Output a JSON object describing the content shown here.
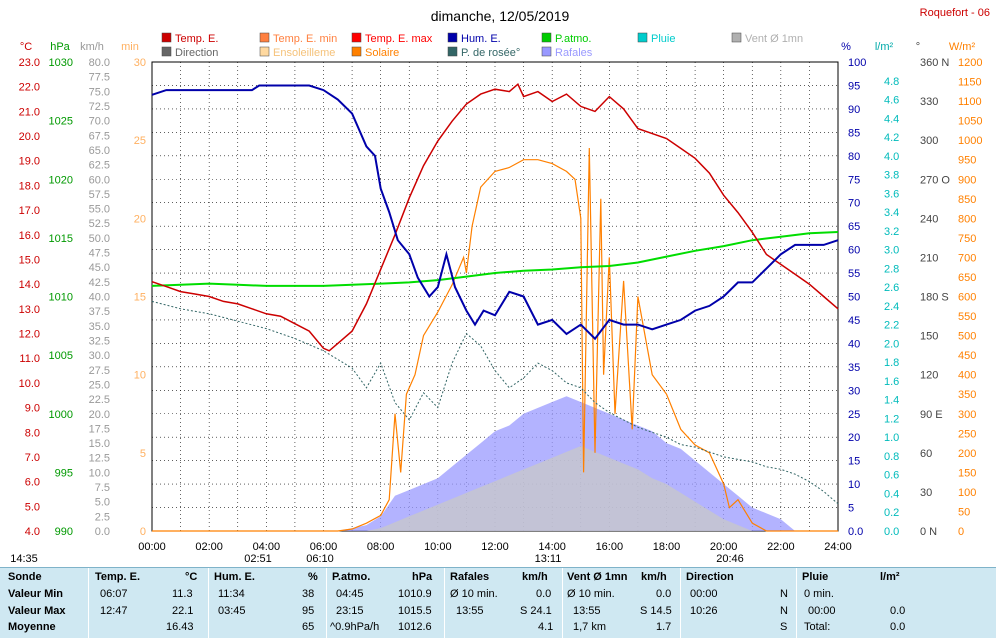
{
  "chart_data": {
    "type": "line",
    "title": "dimanche, 12/05/2019",
    "station": "Roquefort - 06",
    "x_ticks": [
      "00:00",
      "02:00",
      "04:00",
      "06:00",
      "08:00",
      "10:00",
      "12:00",
      "14:00",
      "16:00",
      "18:00",
      "20:00",
      "22:00",
      "24:00"
    ],
    "xlim": [
      0,
      24
    ],
    "legend": [
      {
        "label": "Temp. E.",
        "color": "#cc0000"
      },
      {
        "label": "Temp. E. min",
        "color": "#ff8040"
      },
      {
        "label": "Temp. E. max",
        "color": "#ff0000"
      },
      {
        "label": "Hum. E.",
        "color": "#0000aa"
      },
      {
        "label": "P.atmo.",
        "color": "#00cc00"
      },
      {
        "label": "Pluie",
        "color": "#00cccc"
      },
      {
        "label": "Vent Ø 1mn",
        "color": "#b0b0b0"
      },
      {
        "label": "Direction",
        "color": "#666666"
      },
      {
        "label": "Ensoleilleme",
        "color": "#ffd9a0"
      },
      {
        "label": "Solaire",
        "color": "#ff8000"
      },
      {
        "label": "P. de rosée°",
        "color": "#336666"
      },
      {
        "label": "Rafales",
        "color": "#9999ff"
      }
    ],
    "axes": {
      "temp": {
        "unit": "°C",
        "min": 4.0,
        "max": 23.0,
        "ticks": [
          "23.0",
          "22.0",
          "21.0",
          "20.0",
          "19.0",
          "18.0",
          "17.0",
          "16.0",
          "15.0",
          "14.0",
          "13.0",
          "12.0",
          "11.0",
          "10.0",
          "9.0",
          "8.0",
          "7.0",
          "6.0",
          "5.0",
          "4.0"
        ],
        "color": "#cc0000"
      },
      "pressure": {
        "unit": "hPa",
        "min": 990,
        "max": 1030,
        "ticks": [
          "1030",
          "1025",
          "1020",
          "1015",
          "1010",
          "1005",
          "1000",
          "995",
          "990"
        ],
        "color": "#009900"
      },
      "wind": {
        "unit": "km/h",
        "min": 0,
        "max": 80,
        "ticks": [
          "80.0",
          "77.5",
          "75.0",
          "72.5",
          "70.0",
          "67.5",
          "65.0",
          "62.5",
          "60.0",
          "57.5",
          "55.0",
          "52.5",
          "50.0",
          "47.5",
          "45.0",
          "42.5",
          "40.0",
          "37.5",
          "35.0",
          "32.5",
          "30.0",
          "27.5",
          "25.0",
          "22.5",
          "20.0",
          "17.5",
          "15.0",
          "12.5",
          "10.0",
          "7.5",
          "5.0",
          "2.5",
          "0.0"
        ],
        "color": "#999999"
      },
      "sun": {
        "unit": "min",
        "min": 0,
        "max": 30,
        "ticks": [
          "30",
          "25",
          "20",
          "15",
          "10",
          "5",
          "0"
        ],
        "color": "#ffb060"
      },
      "hum": {
        "unit": "%",
        "min": 0,
        "max": 100,
        "ticks": [
          "100",
          "95",
          "90",
          "85",
          "80",
          "75",
          "70",
          "65",
          "60",
          "55",
          "50",
          "45",
          "40",
          "35",
          "30",
          "25",
          "20",
          "15",
          "10",
          "5",
          "0.0"
        ],
        "color": "#0000aa"
      },
      "rain": {
        "unit": "l/m²",
        "min": 0,
        "max": 5.0,
        "ticks": [
          "4.8",
          "4.6",
          "4.4",
          "4.2",
          "4.0",
          "3.8",
          "3.6",
          "3.4",
          "3.2",
          "3.0",
          "2.8",
          "2.6",
          "2.4",
          "2.2",
          "2.0",
          "1.8",
          "1.6",
          "1.4",
          "1.2",
          "1.0",
          "0.8",
          "0.6",
          "0.4",
          "0.2",
          "0.0"
        ],
        "color": "#00cccc"
      },
      "dir": {
        "unit": "°",
        "ticks": [
          "360 N",
          "330",
          "300",
          "270 O",
          "240",
          "210",
          "180 S",
          "150",
          "120",
          "90 E",
          "60",
          "30",
          "0 N"
        ],
        "color": "#444444"
      },
      "solar": {
        "unit": "W/m²",
        "min": 0,
        "max": 1200,
        "ticks": [
          "1200",
          "1150",
          "1100",
          "1050",
          "1000",
          "950",
          "900",
          "850",
          "800",
          "750",
          "700",
          "650",
          "600",
          "550",
          "500",
          "450",
          "400",
          "350",
          "300",
          "250",
          "200",
          "150",
          "100",
          "50",
          "0"
        ],
        "color": "#ff8000"
      }
    },
    "series": [
      {
        "name": "Temp. E.",
        "axis": "temp",
        "x": [
          0,
          0.5,
          1,
          1.5,
          2,
          2.5,
          3,
          3.5,
          4,
          4.5,
          5,
          5.5,
          6,
          6.2,
          6.5,
          7,
          7.5,
          8,
          8.5,
          9,
          9.5,
          10,
          10.5,
          11,
          11.5,
          12,
          12.5,
          12.8,
          13,
          13.5,
          14,
          14.5,
          15,
          15.5,
          16,
          16.5,
          17,
          17.5,
          18,
          18.5,
          19,
          19.5,
          20,
          20.5,
          21,
          21.5,
          22,
          22.5,
          23,
          23.5,
          24
        ],
        "y": [
          14.1,
          13.9,
          13.7,
          13.6,
          13.5,
          13.3,
          13.2,
          13.0,
          12.8,
          12.7,
          12.4,
          12.1,
          11.4,
          11.3,
          11.6,
          12.1,
          13.2,
          14.6,
          16.0,
          17.5,
          18.8,
          19.8,
          20.6,
          21.3,
          21.7,
          21.9,
          21.8,
          22.1,
          21.6,
          21.8,
          21.4,
          21.7,
          21.2,
          21.0,
          21.6,
          21.1,
          20.3,
          20.1,
          19.9,
          19.5,
          19.1,
          18.5,
          17.6,
          16.9,
          16.1,
          15.2,
          14.8,
          14.4,
          14.0,
          13.5,
          13.0
        ]
      },
      {
        "name": "Hum. E.",
        "axis": "hum",
        "x": [
          0,
          0.5,
          1,
          1.5,
          2,
          2.5,
          3,
          3.5,
          3.75,
          4,
          4.5,
          5,
          5.5,
          6,
          6.5,
          7,
          7.5,
          7.8,
          8,
          8.3,
          8.6,
          9,
          9.3,
          9.7,
          10,
          10.3,
          10.6,
          11,
          11.3,
          11.6,
          12,
          12.5,
          13,
          13.5,
          14,
          14.5,
          15,
          15.5,
          16,
          16.5,
          17,
          17.5,
          18,
          18.5,
          19,
          19.5,
          20,
          20.5,
          21,
          21.5,
          22,
          22.5,
          23,
          23.5,
          24
        ],
        "y": [
          93,
          94,
          94,
          94,
          94,
          94,
          94,
          94,
          95,
          95,
          95,
          95,
          95,
          94,
          92,
          89,
          82,
          80,
          73,
          68,
          62,
          59,
          54,
          50,
          52,
          59,
          52,
          47,
          44,
          47,
          46,
          51,
          50,
          44,
          45,
          42,
          44,
          41,
          45,
          44,
          44,
          43,
          44,
          45,
          47,
          48,
          50,
          53,
          53,
          56,
          59,
          61,
          61,
          61,
          62
        ]
      },
      {
        "name": "P.atmo.",
        "axis": "pressure",
        "x": [
          0,
          1,
          2,
          3,
          4,
          5,
          6,
          7,
          8,
          9,
          10,
          11,
          12,
          13,
          14,
          15,
          16,
          17,
          18,
          19,
          20,
          21,
          22,
          23,
          24
        ],
        "y": [
          1010.9,
          1011.0,
          1011.1,
          1011.0,
          1010.9,
          1010.9,
          1010.9,
          1011.0,
          1011.1,
          1011.2,
          1011.4,
          1011.7,
          1012.0,
          1012.2,
          1012.3,
          1012.5,
          1012.6,
          1012.9,
          1013.4,
          1013.9,
          1014.3,
          1014.8,
          1015.1,
          1015.4,
          1015.5
        ]
      },
      {
        "name": "P. de rosée°",
        "axis": "temp",
        "x": [
          0,
          1,
          2,
          3,
          4,
          5,
          6,
          7,
          7.5,
          8,
          8.5,
          9,
          9.5,
          10,
          10.5,
          11,
          11.5,
          12,
          12.5,
          13,
          13.5,
          14,
          14.5,
          15,
          15.5,
          16,
          16.5,
          17,
          17.5,
          18,
          18.5,
          19,
          19.5,
          20,
          20.5,
          21,
          21.5,
          22,
          22.5,
          23,
          23.5,
          24
        ],
        "y": [
          13.3,
          13.0,
          12.8,
          12.5,
          12.2,
          11.8,
          11.3,
          10.6,
          9.8,
          10.8,
          9.2,
          8.5,
          9.6,
          9.0,
          10.8,
          12.0,
          11.5,
          10.5,
          9.8,
          10.2,
          10.8,
          10.5,
          10.0,
          9.8,
          9.2,
          8.8,
          8.5,
          8.2,
          8.0,
          7.8,
          7.5,
          7.4,
          7.2,
          7.0,
          6.9,
          6.8,
          6.6,
          6.5,
          6.3,
          6.0,
          5.6,
          5.1
        ]
      },
      {
        "name": "Solaire",
        "axis": "solar",
        "x": [
          0,
          6.5,
          7,
          7.5,
          8,
          8.3,
          8.5,
          8.7,
          8.9,
          9.2,
          9.5,
          10,
          10.5,
          10.9,
          11,
          11.2,
          11.5,
          12,
          12.5,
          13,
          13.5,
          14,
          14.5,
          14.8,
          15,
          15.1,
          15.3,
          15.5,
          15.7,
          15.8,
          16,
          16.2,
          16.5,
          16.8,
          17,
          17.5,
          18,
          18.5,
          19,
          19.5,
          20,
          20.2,
          20.5,
          21,
          21.5,
          24
        ],
        "y": [
          0,
          0,
          5,
          20,
          40,
          80,
          300,
          150,
          350,
          400,
          500,
          560,
          630,
          700,
          660,
          780,
          880,
          920,
          930,
          950,
          950,
          940,
          920,
          900,
          800,
          150,
          980,
          200,
          850,
          400,
          700,
          300,
          640,
          260,
          600,
          400,
          350,
          260,
          220,
          200,
          120,
          60,
          80,
          20,
          0,
          0
        ]
      },
      {
        "name": "Rafales",
        "axis": "wind",
        "x": [
          0,
          6.5,
          7,
          7.5,
          8,
          8.5,
          9,
          9.5,
          10,
          10.5,
          11,
          11.5,
          12,
          12.5,
          13,
          13.5,
          14,
          14.5,
          15,
          15.5,
          16,
          16.5,
          17,
          17.5,
          18,
          18.5,
          19,
          19.5,
          20,
          20.5,
          21,
          21.5,
          22,
          22.5,
          24
        ],
        "y": [
          0,
          0,
          0.5,
          1,
          2.5,
          6,
          7,
          8,
          9,
          11,
          13,
          15,
          17,
          18,
          20,
          21,
          22,
          23,
          22,
          21,
          20,
          19,
          18,
          17,
          15,
          14,
          12,
          10,
          8,
          6,
          4,
          3,
          2,
          0,
          0
        ]
      },
      {
        "name": "Vent Ø 1mn",
        "axis": "wind",
        "x": [
          0,
          7.5,
          8,
          8.5,
          9,
          9.5,
          10,
          10.5,
          11,
          11.5,
          12,
          12.5,
          13,
          13.5,
          14,
          14.5,
          15,
          15.5,
          16,
          16.5,
          17,
          17.5,
          18,
          18.5,
          19,
          19.5,
          20,
          20.5,
          21,
          24
        ],
        "y": [
          0,
          0,
          0.5,
          1.5,
          2.5,
          3.5,
          4.5,
          5.5,
          6.5,
          7.5,
          8.5,
          9.5,
          10.5,
          11.5,
          12.5,
          13.5,
          14.5,
          13.5,
          12.5,
          11.5,
          10.5,
          9,
          8,
          6.5,
          5,
          3.5,
          2,
          1,
          0,
          0
        ]
      }
    ],
    "time_markers": [
      "14:35",
      "02:51",
      "06:10",
      "13:11",
      "20:46"
    ]
  },
  "stats": {
    "headers": {
      "sonde": "Sonde",
      "temp": "Temp. E.",
      "temp_unit": "°C",
      "hum": "Hum. E.",
      "hum_unit": "%",
      "pres": "P.atmo.",
      "pres_unit": "hPa",
      "gust": "Rafales",
      "gust_unit": "km/h",
      "wind": "Vent Ø 1mn",
      "wind_unit": "km/h",
      "dir": "Direction",
      "rain": "Pluie",
      "rain_unit": "l/m²"
    },
    "rows": [
      {
        "label": "Valeur Min",
        "temp_t": "06:07",
        "temp_v": "11.3",
        "hum_t": "11:34",
        "hum_v": "38",
        "pres_t": "04:45",
        "pres_v": "1010.9",
        "gust_t": "Ø 10 min.",
        "gust_v": "0.0",
        "wind_t": "Ø 10 min.",
        "wind_v": "0.0",
        "dir_t": "00:00",
        "dir_v": "N",
        "rain_t": "0 min.",
        "rain_v": ""
      },
      {
        "label": "Valeur Max",
        "temp_t": "12:47",
        "temp_v": "22.1",
        "hum_t": "03:45",
        "hum_v": "95",
        "pres_t": "23:15",
        "pres_v": "1015.5",
        "gust_t": "13:55",
        "gust_v": "S 24.1",
        "wind_t": "13:55",
        "wind_v": "S 14.5",
        "dir_t": "10:26",
        "dir_v": "N",
        "rain_t": "00:00",
        "rain_v": "0.0"
      },
      {
        "label": "Moyenne",
        "temp_t": "",
        "temp_v": "16.43",
        "hum_t": "",
        "hum_v": "65",
        "pres_t": "^0.9hPa/h",
        "pres_v": "1012.6",
        "gust_t": "",
        "gust_v": "4.1",
        "wind_t": "1,7 km",
        "wind_v": "1.7",
        "dir_t": "",
        "dir_v": "S",
        "rain_t": "Total:",
        "rain_v": "0.0"
      }
    ]
  }
}
